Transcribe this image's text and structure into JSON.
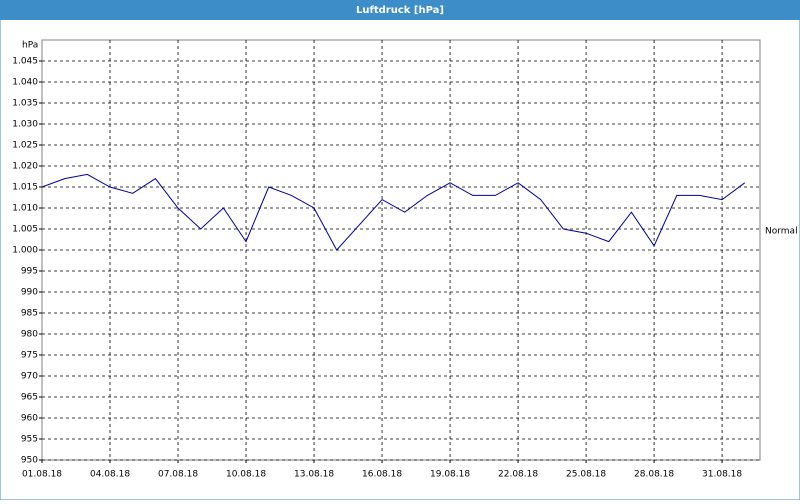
{
  "chart_data": {
    "type": "line",
    "title": "Luftdruck [hPa]",
    "y_label": "hPa",
    "annotation": "Normal",
    "x": [
      "01.08.18",
      null,
      null,
      "04.08.18",
      null,
      null,
      "07.08.18",
      null,
      null,
      "10.08.18",
      null,
      null,
      "13.08.18",
      null,
      null,
      "16.08.18",
      null,
      null,
      "19.08.18",
      null,
      null,
      "22.08.18",
      null,
      null,
      "25.08.18",
      null,
      null,
      "28.08.18",
      null,
      null,
      "31.08.18",
      null
    ],
    "series": [
      {
        "name": "Luftdruck",
        "color": "#0000a0",
        "values": [
          1015,
          1017,
          1018,
          1015,
          1013.5,
          1017,
          1010,
          1005,
          1010,
          1002,
          1015,
          1013,
          1010,
          1000,
          1006,
          1012,
          1009,
          1013,
          1016,
          1013,
          1013,
          1016,
          1012,
          1005,
          1004,
          1002,
          1009,
          1001,
          1013,
          1013,
          1012,
          1016
        ]
      }
    ],
    "ylim": [
      950,
      1050
    ],
    "yticks": [
      950,
      955,
      960,
      965,
      970,
      975,
      980,
      985,
      990,
      995,
      {
        "value": 1000,
        "label": "1.000"
      },
      {
        "value": 1005,
        "label": "1.005"
      },
      {
        "value": 1010,
        "label": "1.010"
      },
      {
        "value": 1015,
        "label": "1.015"
      },
      {
        "value": 1020,
        "label": "1.020"
      },
      {
        "value": 1025,
        "label": "1.025"
      },
      {
        "value": 1030,
        "label": "1.030"
      },
      {
        "value": 1035,
        "label": "1.035"
      },
      {
        "value": 1040,
        "label": "1.040"
      },
      {
        "value": 1045,
        "label": "1.045"
      }
    ],
    "grid": true
  }
}
